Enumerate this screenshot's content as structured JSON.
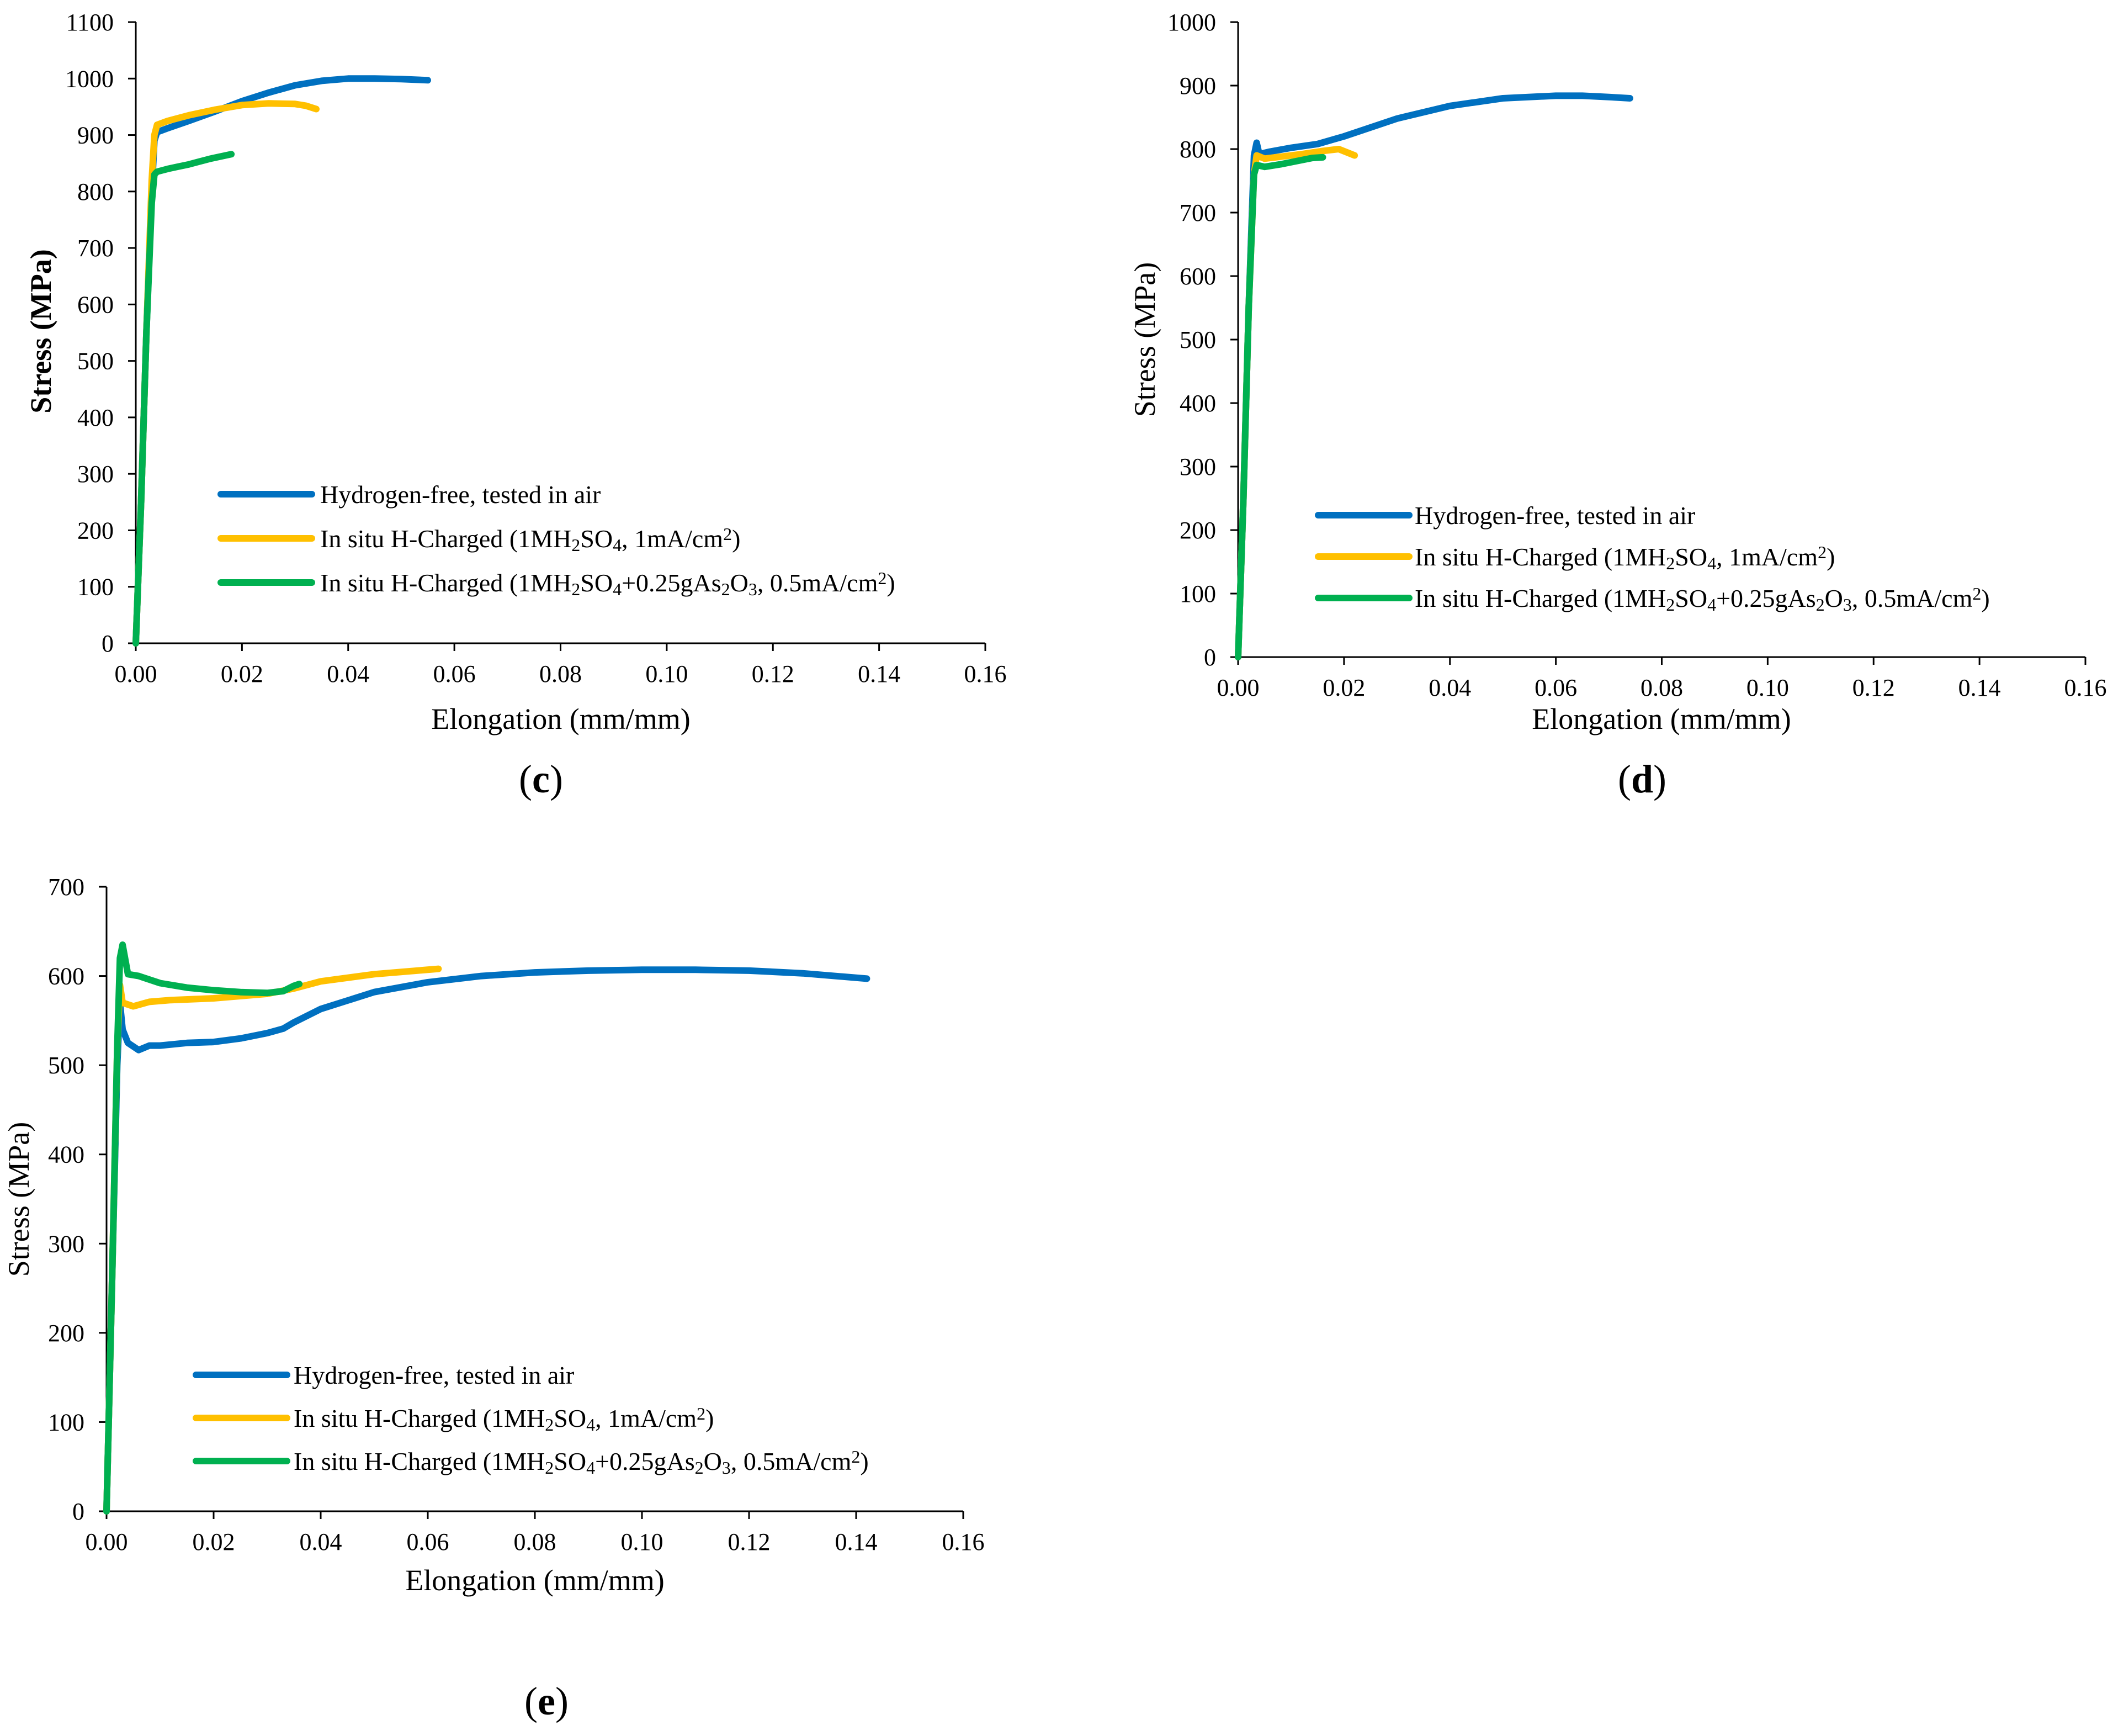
{
  "chart_data": [
    {
      "panel": "c",
      "type": "line",
      "title": "",
      "xlabel": "Elongation (mm/mm)",
      "ylabel": "Stress (MPa)",
      "ylabel_bold": true,
      "xlim": [
        0,
        0.16
      ],
      "ylim": [
        0,
        1100
      ],
      "xticks": [
        "0.00",
        "0.02",
        "0.04",
        "0.06",
        "0.08",
        "0.10",
        "0.12",
        "0.14",
        "0.16"
      ],
      "yticks": [
        "0",
        "100",
        "200",
        "300",
        "400",
        "500",
        "600",
        "700",
        "800",
        "900",
        "1000",
        "1100"
      ],
      "legend": "lower-left-center",
      "series": [
        {
          "name": "Hydrogen-free, tested in air",
          "color": "#0070C0",
          "x": [
            0,
            0.001,
            0.002,
            0.003,
            0.0035,
            0.004,
            0.006,
            0.01,
            0.015,
            0.02,
            0.025,
            0.03,
            0.035,
            0.04,
            0.045,
            0.05,
            0.055
          ],
          "y": [
            0,
            250,
            550,
            800,
            890,
            905,
            912,
            925,
            942,
            960,
            975,
            988,
            996,
            1000,
            1000,
            999,
            997
          ]
        },
        {
          "name": "In situ H-Charged (1MH2SO4, 1mA/cm2)",
          "color": "#FFC000",
          "x": [
            0,
            0.001,
            0.002,
            0.003,
            0.0035,
            0.004,
            0.006,
            0.01,
            0.015,
            0.02,
            0.025,
            0.03,
            0.032,
            0.034
          ],
          "y": [
            0,
            250,
            550,
            820,
            900,
            918,
            925,
            935,
            945,
            953,
            956,
            955,
            952,
            946
          ]
        },
        {
          "name": "In situ H-Charged (1MH2SO4+0.25gAs2O3, 0.5mA/cm2)",
          "color": "#00B050",
          "x": [
            0,
            0.001,
            0.002,
            0.003,
            0.0035,
            0.004,
            0.006,
            0.008,
            0.01,
            0.012,
            0.014,
            0.016,
            0.018
          ],
          "y": [
            0,
            250,
            550,
            780,
            830,
            835,
            840,
            844,
            848,
            853,
            858,
            862,
            866
          ]
        }
      ]
    },
    {
      "panel": "d",
      "type": "line",
      "title": "",
      "xlabel": "Elongation (mm/mm)",
      "ylabel": "Stress (MPa)",
      "ylabel_bold": false,
      "xlim": [
        0,
        0.16
      ],
      "ylim": [
        0,
        1000
      ],
      "xticks": [
        "0.00",
        "0.02",
        "0.04",
        "0.06",
        "0.08",
        "0.10",
        "0.12",
        "0.14",
        "0.16"
      ],
      "yticks": [
        "0",
        "100",
        "200",
        "300",
        "400",
        "500",
        "600",
        "700",
        "800",
        "900",
        "1000"
      ],
      "legend": "lower-left-center",
      "series": [
        {
          "name": "Hydrogen-free, tested in air",
          "color": "#0070C0",
          "x": [
            0,
            0.001,
            0.002,
            0.003,
            0.0035,
            0.004,
            0.006,
            0.01,
            0.015,
            0.02,
            0.03,
            0.04,
            0.05,
            0.06,
            0.065,
            0.07,
            0.074
          ],
          "y": [
            0,
            250,
            550,
            790,
            810,
            792,
            796,
            802,
            808,
            820,
            848,
            868,
            880,
            884,
            884,
            882,
            880
          ]
        },
        {
          "name": "In situ H-Charged (1MH2SO4, 1mA/cm2)",
          "color": "#FFC000",
          "x": [
            0,
            0.001,
            0.002,
            0.003,
            0.0035,
            0.005,
            0.008,
            0.012,
            0.016,
            0.019,
            0.022
          ],
          "y": [
            0,
            250,
            550,
            760,
            790,
            785,
            788,
            792,
            797,
            800,
            790
          ]
        },
        {
          "name": "In situ H-Charged (1MH2SO4+0.25gAs2O3, 0.5mA/cm2)",
          "color": "#00B050",
          "x": [
            0,
            0.001,
            0.002,
            0.003,
            0.0035,
            0.005,
            0.008,
            0.011,
            0.014,
            0.016
          ],
          "y": [
            0,
            250,
            550,
            760,
            775,
            772,
            776,
            781,
            786,
            787
          ]
        }
      ]
    },
    {
      "panel": "e",
      "type": "line",
      "title": "",
      "xlabel": "Elongation (mm/mm)",
      "ylabel": "Stress (MPa)",
      "ylabel_bold": false,
      "xlim": [
        0,
        0.16
      ],
      "ylim": [
        0,
        700
      ],
      "xticks": [
        "0.00",
        "0.02",
        "0.04",
        "0.06",
        "0.08",
        "0.10",
        "0.12",
        "0.14",
        "0.16"
      ],
      "yticks": [
        "0",
        "100",
        "200",
        "300",
        "400",
        "500",
        "600",
        "700"
      ],
      "legend": "lower-left-center",
      "series": [
        {
          "name": "Hydrogen-free, tested in air",
          "color": "#0070C0",
          "x": [
            0,
            0.001,
            0.002,
            0.0025,
            0.003,
            0.004,
            0.006,
            0.008,
            0.01,
            0.015,
            0.02,
            0.025,
            0.03,
            0.033,
            0.035,
            0.04,
            0.05,
            0.06,
            0.07,
            0.08,
            0.09,
            0.1,
            0.11,
            0.12,
            0.13,
            0.142
          ],
          "y": [
            0,
            250,
            500,
            570,
            540,
            525,
            517,
            522,
            522,
            525,
            526,
            530,
            536,
            541,
            548,
            563,
            582,
            593,
            600,
            604,
            606,
            607,
            607,
            606,
            603,
            597
          ]
        },
        {
          "name": "In situ H-Charged (1MH2SO4, 1mA/cm2)",
          "color": "#FFC000",
          "x": [
            0,
            0.001,
            0.002,
            0.0025,
            0.003,
            0.005,
            0.008,
            0.012,
            0.02,
            0.03,
            0.035,
            0.04,
            0.05,
            0.062
          ],
          "y": [
            0,
            250,
            520,
            590,
            570,
            566,
            571,
            573,
            575,
            580,
            586,
            594,
            602,
            608
          ]
        },
        {
          "name": "In situ H-Charged (1MH2SO4+0.25gAs2O3, 0.5mA/cm2)",
          "color": "#00B050",
          "x": [
            0,
            0.001,
            0.002,
            0.0025,
            0.003,
            0.004,
            0.006,
            0.01,
            0.015,
            0.02,
            0.025,
            0.03,
            0.033,
            0.035,
            0.036
          ],
          "y": [
            0,
            250,
            520,
            620,
            635,
            602,
            600,
            592,
            587,
            584,
            582,
            581,
            583,
            589,
            591
          ]
        }
      ]
    }
  ],
  "panel_labels": [
    "(c)",
    "(d)",
    "(e)"
  ],
  "legend_parts": {
    "hydrogen_free": "Hydrogen-free, tested in air",
    "charged_prefix": "In situ H-Charged (1MH",
    "sub_2": "2",
    "sub_3": "3",
    "sub_4": "4",
    "so": "SO",
    "as": "+0.25gAs",
    "o": "O",
    "suffix_1": ", 1mA/cm",
    "suffix_05": ", 0.5mA/cm",
    "close": ")"
  }
}
